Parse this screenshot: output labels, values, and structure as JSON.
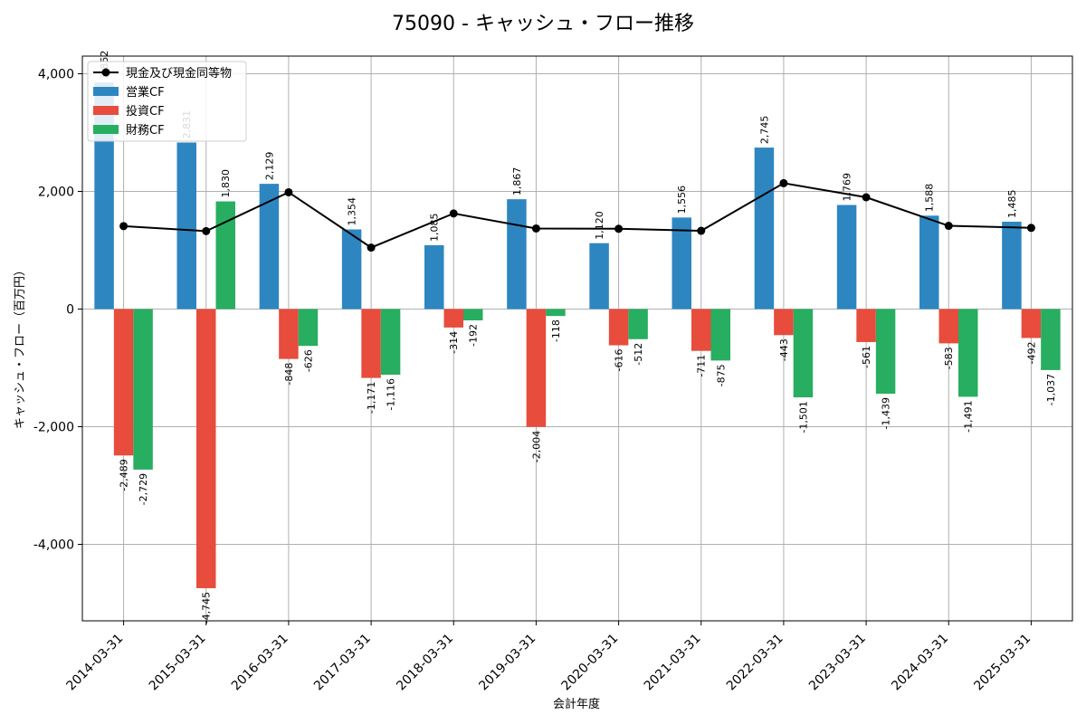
{
  "chart_data": {
    "type": "bar",
    "title": "75090 - キャッシュ・フロー推移",
    "xlabel": "会計年度",
    "ylabel": "キャッシュ・フロー（百万円）",
    "ylim": [
      -5300,
      4300
    ],
    "yticks": [
      -4000,
      -2000,
      0,
      2000,
      4000
    ],
    "ytick_labels": [
      "-4,000",
      "-2,000",
      "0",
      "2,000",
      "4,000"
    ],
    "grid": true,
    "legend_position": "top-left",
    "categories": [
      "2014-03-31",
      "2015-03-31",
      "2016-03-31",
      "2017-03-31",
      "2018-03-31",
      "2019-03-31",
      "2020-03-31",
      "2021-03-31",
      "2022-03-31",
      "2023-03-31",
      "2024-03-31",
      "2025-03-31"
    ],
    "series": [
      {
        "name": "営業CF",
        "kind": "bar",
        "color": "#2e86c1",
        "values": [
          3852,
          2831,
          2129,
          1354,
          1085,
          1867,
          1120,
          1556,
          2745,
          1769,
          1588,
          1485
        ],
        "labels": [
          "3,852",
          "2,831",
          "2,129",
          "1,354",
          "1,085",
          "1,867",
          "1,120",
          "1,556",
          "2,745",
          "1,769",
          "1,588",
          "1,485"
        ]
      },
      {
        "name": "投資CF",
        "kind": "bar",
        "color": "#e74c3c",
        "values": [
          -2489,
          -4745,
          -848,
          -1171,
          -314,
          -2004,
          -616,
          -711,
          -443,
          -561,
          -583,
          -492
        ],
        "labels": [
          "-2,489",
          "-4,745",
          "-848",
          "-1,171",
          "-314",
          "-2,004",
          "-616",
          "-711",
          "-443",
          "-561",
          "-583",
          "-492"
        ]
      },
      {
        "name": "財務CF",
        "kind": "bar",
        "color": "#27ae60",
        "values": [
          -2729,
          1830,
          -626,
          -1116,
          -192,
          -118,
          -512,
          -875,
          -1501,
          -1439,
          -1491,
          -1037
        ],
        "labels": [
          "-2,729",
          "1,830",
          "-626",
          "-1,116",
          "-192",
          "-118",
          "-512",
          "-875",
          "-1,501",
          "-1,439",
          "-1,491",
          "-1,037"
        ]
      },
      {
        "name": "現金及び現金同等物",
        "kind": "line",
        "color": "#000000",
        "values": [
          1410,
          1325,
          1985,
          1045,
          1625,
          1370,
          1365,
          1330,
          2140,
          1900,
          1415,
          1380
        ]
      }
    ]
  }
}
